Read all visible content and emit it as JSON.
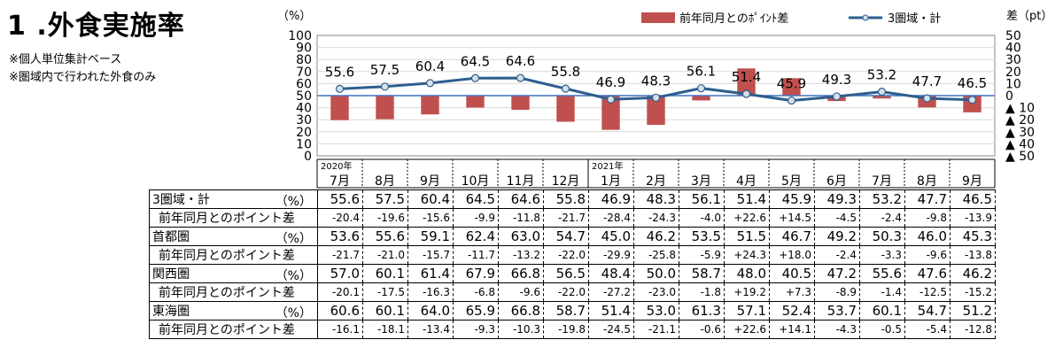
{
  "page": {
    "title": "1 .外食実施率",
    "notes": [
      "※個人単位集計ベース",
      "※圏域内で行われた外食のみ"
    ]
  },
  "chart_data": {
    "type": "bar+line",
    "left_unit": "（%）",
    "right_unit": "差（pt）",
    "left_ticks": [
      "100",
      "90",
      "80",
      "70",
      "60",
      "50",
      "40",
      "30",
      "20",
      "10",
      "0"
    ],
    "right_ticks": [
      "50",
      "40",
      "30",
      "20",
      "10",
      "0",
      "▲ 10",
      "▲ 20",
      "▲ 30",
      "▲ 40",
      "▲ 50"
    ],
    "ylim_left": [
      0,
      100
    ],
    "ylim_right": [
      -50,
      50
    ],
    "year_labels": [
      {
        "label": "2020年",
        "index": 0
      },
      {
        "label": "2021年",
        "index": 6
      }
    ],
    "categories": [
      "7月",
      "8月",
      "9月",
      "10月",
      "11月",
      "12月",
      "1月",
      "2月",
      "3月",
      "4月",
      "5月",
      "6月",
      "7月",
      "8月",
      "9月"
    ],
    "series": [
      {
        "name": "前年同月とのﾎﾟｲﾝﾄ差",
        "type": "bar",
        "axis": "right",
        "color": "#c0504d",
        "values": [
          -20.4,
          -19.6,
          -15.6,
          -9.9,
          -11.8,
          -21.7,
          -28.4,
          -24.3,
          -4.0,
          22.6,
          14.5,
          -4.5,
          -2.4,
          -9.8,
          -13.9
        ]
      },
      {
        "name": "3圏域・計",
        "type": "line",
        "axis": "left",
        "color": "#2e5f8f",
        "values": [
          55.6,
          57.5,
          60.4,
          64.5,
          64.6,
          55.8,
          46.9,
          48.3,
          56.1,
          51.4,
          45.9,
          49.3,
          53.2,
          47.7,
          46.5
        ]
      }
    ],
    "legend_position": "top-right"
  },
  "table": {
    "groups": [
      {
        "name": "3圏域・計",
        "unit": "（%）",
        "values": [
          "55.6",
          "57.5",
          "60.4",
          "64.5",
          "64.6",
          "55.8",
          "46.9",
          "48.3",
          "56.1",
          "51.4",
          "45.9",
          "49.3",
          "53.2",
          "47.7",
          "46.5"
        ],
        "diff_label": "前年同月とのポイント差",
        "diffs": [
          "-20.4",
          "-19.6",
          "-15.6",
          "-9.9",
          "-11.8",
          "-21.7",
          "-28.4",
          "-24.3",
          "-4.0",
          "+22.6",
          "+14.5",
          "-4.5",
          "-2.4",
          "-9.8",
          "-13.9"
        ]
      },
      {
        "name": "首都圏",
        "unit": "（%）",
        "values": [
          "53.6",
          "55.6",
          "59.1",
          "62.4",
          "63.0",
          "54.7",
          "45.0",
          "46.2",
          "53.5",
          "51.5",
          "46.7",
          "49.2",
          "50.3",
          "46.0",
          "45.3"
        ],
        "diff_label": "前年同月とのポイント差",
        "diffs": [
          "-21.7",
          "-21.0",
          "-15.7",
          "-11.7",
          "-13.2",
          "-22.0",
          "-29.9",
          "-25.8",
          "-5.9",
          "+24.3",
          "+18.0",
          "-2.4",
          "-3.3",
          "-9.6",
          "-13.8"
        ]
      },
      {
        "name": "関西圏",
        "unit": "（%）",
        "values": [
          "57.0",
          "60.1",
          "61.4",
          "67.9",
          "66.8",
          "56.5",
          "48.4",
          "50.0",
          "58.7",
          "48.0",
          "40.5",
          "47.2",
          "55.6",
          "47.6",
          "46.2"
        ],
        "diff_label": "前年同月とのポイント差",
        "diffs": [
          "-20.1",
          "-17.5",
          "-16.3",
          "-6.8",
          "-9.6",
          "-22.0",
          "-27.2",
          "-23.0",
          "-1.8",
          "+19.2",
          "+7.3",
          "-8.9",
          "-1.4",
          "-12.5",
          "-15.2"
        ]
      },
      {
        "name": "東海圏",
        "unit": "（%）",
        "values": [
          "60.6",
          "60.1",
          "64.0",
          "65.9",
          "66.8",
          "58.7",
          "51.4",
          "53.0",
          "61.3",
          "57.1",
          "52.4",
          "53.7",
          "60.1",
          "54.7",
          "51.2"
        ],
        "diff_label": "前年同月とのポイント差",
        "diffs": [
          "-16.1",
          "-18.1",
          "-13.4",
          "-9.3",
          "-10.3",
          "-19.8",
          "-24.5",
          "-21.1",
          "-0.6",
          "+22.6",
          "+14.1",
          "-4.3",
          "-0.5",
          "-5.4",
          "-12.8"
        ]
      }
    ]
  }
}
